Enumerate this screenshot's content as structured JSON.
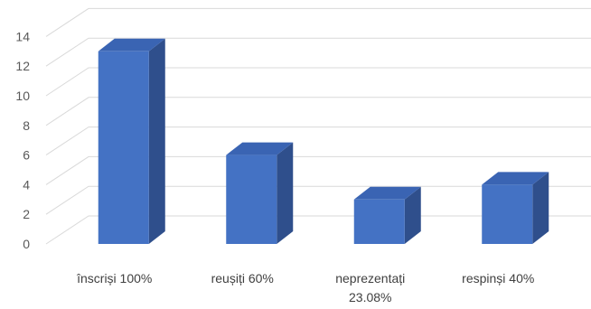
{
  "chart_data": {
    "type": "bar",
    "style": "3d-column",
    "categories": [
      [
        "înscriși 100%"
      ],
      [
        "reușiți 60%"
      ],
      [
        "neprezentați",
        "23.08%"
      ],
      [
        "respinși 40%"
      ]
    ],
    "values": [
      13,
      6,
      3,
      4
    ],
    "ylim": [
      0,
      14
    ],
    "yticks": [
      0,
      2,
      4,
      6,
      8,
      10,
      12,
      14
    ],
    "grid": true,
    "legend": "none",
    "colors": {
      "front": "#4472C4",
      "top": "#3A64B3",
      "side": "#2F4F8C",
      "grid": "#D9D9D9",
      "text": "#595959"
    }
  }
}
